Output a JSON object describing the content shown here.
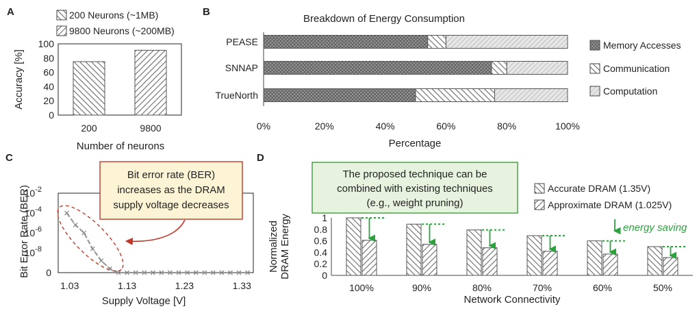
{
  "chart_data": [
    {
      "panel": "A",
      "type": "bar",
      "categories": [
        "200",
        "9800"
      ],
      "values": [
        75,
        91
      ],
      "series_name": [
        "200 Neurons (~1MB)",
        "9800 Neurons (~200MB)"
      ],
      "xlabel": "Number of neurons",
      "ylabel": "Accuracy [%]",
      "ylim": [
        0,
        100
      ],
      "yticks": [
        "0",
        "20",
        "40",
        "60",
        "80",
        "100"
      ]
    },
    {
      "panel": "B",
      "type": "bar",
      "orientation": "horizontal-stacked",
      "title": "Breakdown of Energy Consumption",
      "categories": [
        "PEASE",
        "SNNAP",
        "TrueNorth"
      ],
      "series": [
        {
          "name": "Memory Accesses",
          "values": [
            54,
            75,
            50
          ]
        },
        {
          "name": "Communication",
          "values": [
            6,
            5,
            26
          ]
        },
        {
          "name": "Computation",
          "values": [
            40,
            20,
            24
          ]
        }
      ],
      "xlabel": "Percentage",
      "xlim": [
        0,
        100
      ],
      "xticks": [
        "0%",
        "20%",
        "40%",
        "60%",
        "80%",
        "100%"
      ]
    },
    {
      "panel": "C",
      "type": "line",
      "x": [
        1.025,
        1.04,
        1.055,
        1.07,
        1.085,
        1.1,
        1.115,
        1.13,
        1.145,
        1.16,
        1.175,
        1.19,
        1.205,
        1.22,
        1.235,
        1.25,
        1.265,
        1.28,
        1.295,
        1.31,
        1.325,
        1.34
      ],
      "y_log10": [
        -4.0,
        -5.2,
        -6.0,
        -7.6,
        -8.8,
        -9.6,
        -10,
        -10,
        -10,
        -10,
        -10,
        -10,
        -10,
        -10,
        -10,
        -10,
        -10,
        -10,
        -10,
        -10,
        -10,
        -10
      ],
      "xlabel": "Supply Voltage [V]",
      "ylabel": "Bit Error Rate (BER)",
      "xlim": [
        1.01,
        1.35
      ],
      "ylim_log10": [
        -10,
        -2
      ],
      "xticks": [
        "1.03",
        "1.13",
        "1.23",
        "1.33"
      ],
      "yticks": [
        {
          "base": "10",
          "exp": "-2"
        },
        {
          "base": "10",
          "exp": "-4"
        },
        {
          "base": "10",
          "exp": "-6"
        },
        {
          "base": "10",
          "exp": "-8"
        },
        {
          "base": "",
          "exp": ""
        }
      ],
      "y_zero_label": "0",
      "callout": [
        "Bit error rate (BER)",
        "increases as the DRAM",
        "supply voltage decreases"
      ]
    },
    {
      "panel": "D",
      "type": "bar",
      "categories": [
        "100%",
        "90%",
        "80%",
        "70%",
        "60%",
        "50%"
      ],
      "series": [
        {
          "name": "Accurate DRAM (1.35V)",
          "values": [
            1.0,
            0.89,
            0.79,
            0.69,
            0.6,
            0.5
          ]
        },
        {
          "name": "Approximate DRAM (1.025V)",
          "values": [
            0.61,
            0.54,
            0.48,
            0.42,
            0.37,
            0.31
          ]
        }
      ],
      "xlabel": "Network Connectivity",
      "ylabel": [
        "Normalized",
        "DRAM Energy"
      ],
      "ylim": [
        0,
        1
      ],
      "yticks": [
        "0",
        "0.2",
        "0.4",
        "0.6",
        "0.8",
        "1"
      ],
      "annotation": "energy saving",
      "callout": [
        "The proposed technique can be",
        "combined with existing techniques",
        "(e.g., weight pruning)"
      ]
    }
  ],
  "panels": {
    "a": "A",
    "b": "B",
    "c": "C",
    "d": "D"
  },
  "colors": {
    "bar_stroke": "#555555",
    "green": "#2aa33c",
    "callout_red": "#c0392b",
    "callout_yellow_fill": "#fdf4d6",
    "callout_green_fill": "#e7f3df",
    "callout_green_stroke": "#3d9b3a",
    "line": "#9a9a9a"
  }
}
